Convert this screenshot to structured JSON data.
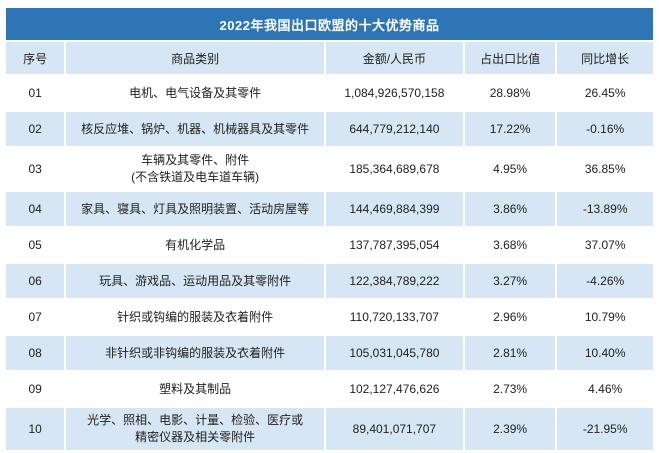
{
  "chart_data": {
    "type": "table",
    "title": "2022年我国出口欧盟的十大优势商品",
    "columns": [
      "序号",
      "商品类别",
      "金额/人民币",
      "占出口比值",
      "同比增长"
    ],
    "rows": [
      {
        "no": "01",
        "category": "电机、电气设备及其零件",
        "amount": "1,084,926,570,158",
        "share": "28.98%",
        "yoy": "26.45%"
      },
      {
        "no": "02",
        "category": "核反应堆、锅炉、机器、机械器具及其零件",
        "amount": "644,779,212,140",
        "share": "17.22%",
        "yoy": "-0.16%"
      },
      {
        "no": "03",
        "category": "车辆及其零件、附件\n(不含铁道及电车道车辆)",
        "amount": "185,364,689,678",
        "share": "4.95%",
        "yoy": "36.85%"
      },
      {
        "no": "04",
        "category": "家具、寝具、灯具及照明装置、活动房屋等",
        "amount": "144,469,884,399",
        "share": "3.86%",
        "yoy": "-13.89%"
      },
      {
        "no": "05",
        "category": "有机化学品",
        "amount": "137,787,395,054",
        "share": "3.68%",
        "yoy": "37.07%"
      },
      {
        "no": "06",
        "category": "玩具、游戏品、运动用品及其零附件",
        "amount": "122,384,789,222",
        "share": "3.27%",
        "yoy": "-4.26%"
      },
      {
        "no": "07",
        "category": "针织或钩编的服装及衣着附件",
        "amount": "110,720,133,707",
        "share": "2.96%",
        "yoy": "10.79%"
      },
      {
        "no": "08",
        "category": "非针织或非钩编的服装及衣着附件",
        "amount": "105,031,045,780",
        "share": "2.81%",
        "yoy": "10.40%"
      },
      {
        "no": "09",
        "category": "塑料及其制品",
        "amount": "102,127,476,626",
        "share": "2.73%",
        "yoy": "4.46%"
      },
      {
        "no": "10",
        "category": "光学、照相、电影、计量、检验、医疗或\n精密仪器及相关零附件",
        "amount": "89,401,071,707",
        "share": "2.39%",
        "yoy": "-21.95%"
      }
    ]
  },
  "colors": {
    "title_bg": "#2e75b6",
    "alt_bg": "#d6e6f4",
    "text": "#212121",
    "title_text": "#ffffff"
  }
}
